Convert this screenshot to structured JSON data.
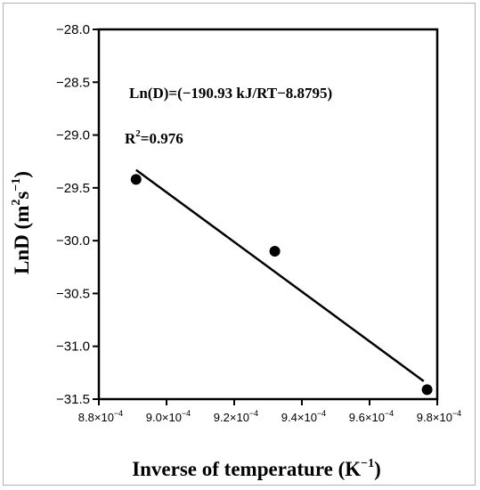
{
  "chart_data": {
    "type": "scatter",
    "title": "",
    "xlabel": "Inverse of temperature (K",
    "xlabel_sup": "−1",
    "xlabel_end": ")",
    "ylabel": "LnD (m",
    "ylabel_sup1": "2",
    "ylabel_mid": "s",
    "ylabel_sup2": "−1",
    "ylabel_end": ")",
    "xlim": [
      0.00088,
      0.00098
    ],
    "ylim": [
      -31.5,
      -28.0
    ],
    "x_ticks": [
      {
        "value": 0.00088,
        "mant": "8.8×10",
        "exp": "−4"
      },
      {
        "value": 0.0009,
        "mant": "9.0×10",
        "exp": "−4"
      },
      {
        "value": 0.00092,
        "mant": "9.2×10",
        "exp": "−4"
      },
      {
        "value": 0.00094,
        "mant": "9.4×10",
        "exp": "−4"
      },
      {
        "value": 0.00096,
        "mant": "9.6×10",
        "exp": "−4"
      },
      {
        "value": 0.00098,
        "mant": "9.8×10",
        "exp": "−4"
      }
    ],
    "y_ticks": [
      {
        "value": -28.0,
        "label": "−28.0"
      },
      {
        "value": -28.5,
        "label": "−28.5"
      },
      {
        "value": -29.0,
        "label": "−29.0"
      },
      {
        "value": -29.5,
        "label": "−29.5"
      },
      {
        "value": -30.0,
        "label": "−30.0"
      },
      {
        "value": -30.5,
        "label": "−30.5"
      },
      {
        "value": -31.0,
        "label": "−31.0"
      },
      {
        "value": -31.5,
        "label": "−31.5"
      }
    ],
    "points": [
      {
        "x": 0.000891,
        "y": -29.42
      },
      {
        "x": 0.000932,
        "y": -30.1
      },
      {
        "x": 0.000977,
        "y": -31.41
      }
    ],
    "fit_line": [
      {
        "x": 0.000891,
        "y": -29.33
      },
      {
        "x": 0.000976,
        "y": -31.33
      }
    ],
    "equation": "Ln(D)=(−190.93 kJ/RT−8.8795)",
    "r2_prefix": "R",
    "r2_sup": "2",
    "r2_value": "=0.976",
    "grid": false,
    "colors": {
      "axis": "#000000",
      "marker": "#000000",
      "line": "#000000"
    }
  }
}
